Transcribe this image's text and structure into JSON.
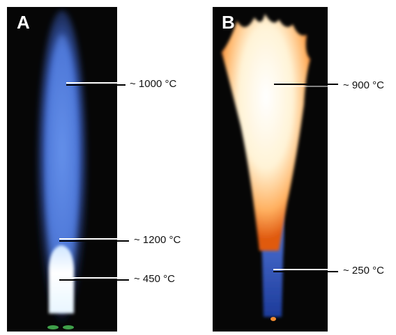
{
  "panels": [
    {
      "label": "A",
      "annotations": [
        "~ 1000 °C",
        "~ 1200 °C",
        "~ 450 °C"
      ]
    },
    {
      "label": "B",
      "annotations": [
        "~ 900 °C",
        "~ 250 °C"
      ]
    }
  ]
}
